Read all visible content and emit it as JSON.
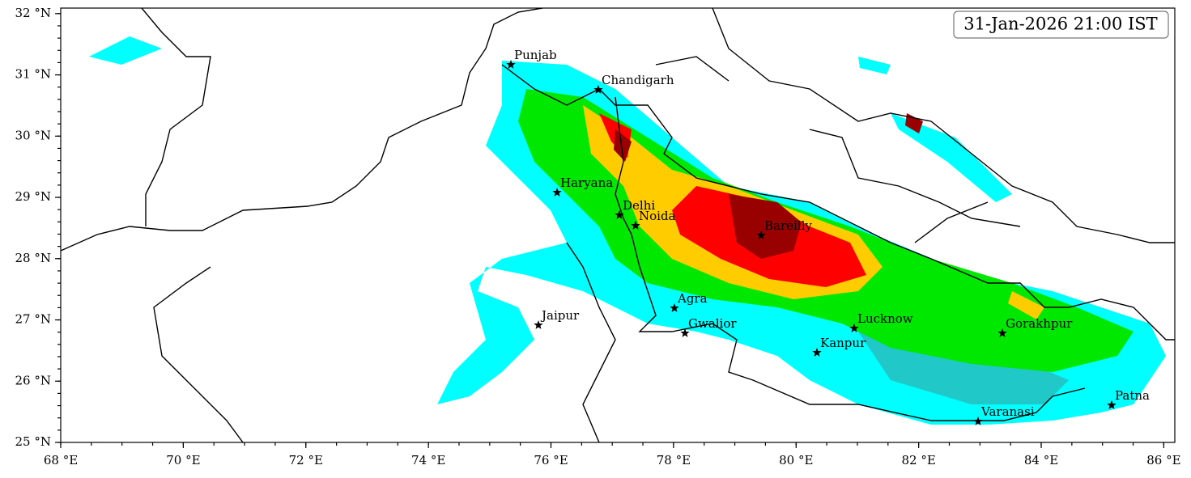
{
  "map": {
    "timestamp": "31-Jan-2026 21:00 IST",
    "xlim": [
      68,
      86.18
    ],
    "ylim": [
      25,
      32.09
    ],
    "xticks": [
      {
        "value": 68,
        "label": "68 °E"
      },
      {
        "value": 70,
        "label": "70 °E"
      },
      {
        "value": 72,
        "label": "72 °E"
      },
      {
        "value": 74,
        "label": "74 °E"
      },
      {
        "value": 76,
        "label": "76 °E"
      },
      {
        "value": 78,
        "label": "78 °E"
      },
      {
        "value": 80,
        "label": "80 °E"
      },
      {
        "value": 82,
        "label": "82 °E"
      },
      {
        "value": 84,
        "label": "84 °E"
      },
      {
        "value": 86,
        "label": "86 °E"
      }
    ],
    "yticks": [
      {
        "value": 25,
        "label": "25 °N"
      },
      {
        "value": 26,
        "label": "26 °N"
      },
      {
        "value": 27,
        "label": "27 °N"
      },
      {
        "value": 28,
        "label": "28 °N"
      },
      {
        "value": 29,
        "label": "29 °N"
      },
      {
        "value": 30,
        "label": "30 °N"
      },
      {
        "value": 31,
        "label": "31 °N"
      },
      {
        "value": 32,
        "label": "32 °N"
      }
    ],
    "cities": [
      "Punjab",
      "Chandigarh",
      "Haryana",
      "Delhi",
      "Noida",
      "Bareilly",
      "Agra",
      "Jaipur",
      "Gwalior",
      "Lucknow",
      "Kanpur",
      "Gorakhpur",
      "Varanasi",
      "Patna"
    ]
  }
}
